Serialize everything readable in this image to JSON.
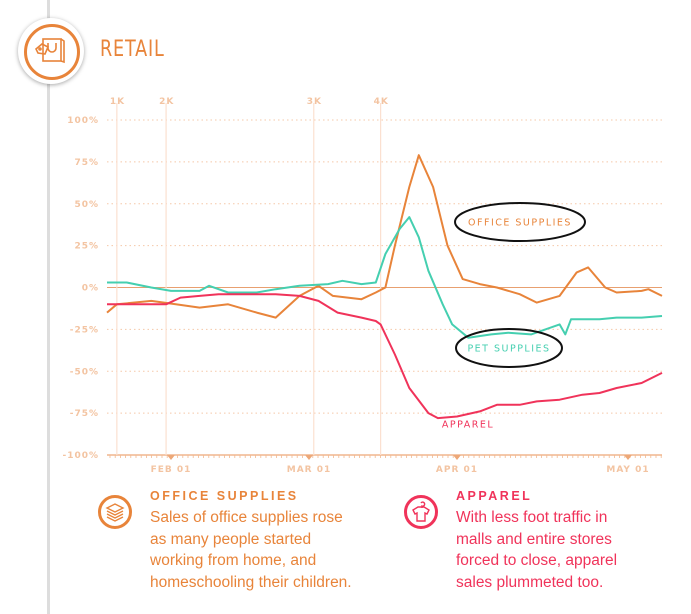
{
  "header": {
    "title": "RETAIL",
    "icon": "shopping-bag-icon"
  },
  "colors": {
    "office": "#e8843a",
    "pet": "#45cfb0",
    "apparel": "#f0335a",
    "grid": "#f5c8a8"
  },
  "chart_data": {
    "type": "line",
    "title": "",
    "xlabel": "",
    "ylabel": "",
    "ylim": [
      -100,
      100
    ],
    "xlim": [
      "01-19",
      "05-06"
    ],
    "grid": true,
    "yticks": [
      100,
      75,
      50,
      25,
      0,
      -25,
      -50,
      -75,
      -100
    ],
    "ytick_labels": [
      "100%",
      "75%",
      "50%",
      "25%",
      "0%",
      "-25%",
      "-50%",
      "-75%",
      "-100%"
    ],
    "xticks": [
      "02-01",
      "03-01",
      "04-01",
      "05-01"
    ],
    "xtick_labels": [
      "FEB 01",
      "MAR 01",
      "APR 01",
      "MAY 01"
    ],
    "markers": [
      {
        "label": "1K",
        "date": "01-21"
      },
      {
        "label": "2K",
        "date": "01-31"
      },
      {
        "label": "3K",
        "date": "03-02"
      },
      {
        "label": "4K",
        "date": "03-16"
      }
    ],
    "series": [
      {
        "name": "OFFICE SUPPLIES",
        "color": "#e8843a",
        "circled": true,
        "points": [
          [
            "01-19",
            -15
          ],
          [
            "01-21",
            -10
          ],
          [
            "01-28",
            -8
          ],
          [
            "02-02",
            -10
          ],
          [
            "02-07",
            -12
          ],
          [
            "02-13",
            -10
          ],
          [
            "02-19",
            -15
          ],
          [
            "02-23",
            -18
          ],
          [
            "02-28",
            -5
          ],
          [
            "03-03",
            1
          ],
          [
            "03-06",
            -5
          ],
          [
            "03-12",
            -7
          ],
          [
            "03-15",
            -3
          ],
          [
            "03-17",
            0
          ],
          [
            "03-19",
            25
          ],
          [
            "03-22",
            60
          ],
          [
            "03-24",
            79
          ],
          [
            "03-27",
            60
          ],
          [
            "03-30",
            25
          ],
          [
            "04-02",
            5
          ],
          [
            "04-05",
            2
          ],
          [
            "04-08",
            0
          ],
          [
            "04-12",
            -4
          ],
          [
            "04-15",
            -9
          ],
          [
            "04-19",
            -5
          ],
          [
            "04-22",
            9
          ],
          [
            "04-24",
            12
          ],
          [
            "04-27",
            0
          ],
          [
            "04-29",
            -3
          ],
          [
            "05-03",
            -2
          ],
          [
            "05-04",
            -1
          ],
          [
            "05-06",
            -5
          ]
        ]
      },
      {
        "name": "PET SUPPLIES",
        "color": "#45cfb0",
        "circled": true,
        "points": [
          [
            "01-19",
            3
          ],
          [
            "01-23",
            3
          ],
          [
            "01-28",
            0
          ],
          [
            "02-01",
            -2
          ],
          [
            "02-07",
            -2
          ],
          [
            "02-09",
            1
          ],
          [
            "02-13",
            -3
          ],
          [
            "02-19",
            -3
          ],
          [
            "02-23",
            -1
          ],
          [
            "02-28",
            1
          ],
          [
            "03-05",
            2
          ],
          [
            "03-08",
            4
          ],
          [
            "03-12",
            2
          ],
          [
            "03-15",
            3
          ],
          [
            "03-17",
            20
          ],
          [
            "03-20",
            35
          ],
          [
            "03-22",
            42
          ],
          [
            "03-24",
            30
          ],
          [
            "03-26",
            10
          ],
          [
            "03-29",
            -10
          ],
          [
            "03-31",
            -22
          ],
          [
            "04-03",
            -30
          ],
          [
            "04-07",
            -28
          ],
          [
            "04-10",
            -27
          ],
          [
            "04-14",
            -28
          ],
          [
            "04-19",
            -22
          ],
          [
            "04-20",
            -28
          ],
          [
            "04-21",
            -19
          ],
          [
            "04-26",
            -19
          ],
          [
            "04-29",
            -18
          ],
          [
            "05-03",
            -18
          ],
          [
            "05-06",
            -17
          ]
        ]
      },
      {
        "name": "APPAREL",
        "color": "#f0335a",
        "circled": false,
        "points": [
          [
            "01-19",
            -10
          ],
          [
            "01-25",
            -10
          ],
          [
            "01-31",
            -10
          ],
          [
            "02-03",
            -6
          ],
          [
            "02-07",
            -5
          ],
          [
            "02-11",
            -4
          ],
          [
            "02-15",
            -4
          ],
          [
            "02-19",
            -4
          ],
          [
            "02-23",
            -4
          ],
          [
            "02-28",
            -5
          ],
          [
            "03-03",
            -8
          ],
          [
            "03-07",
            -15
          ],
          [
            "03-12",
            -18
          ],
          [
            "03-15",
            -20
          ],
          [
            "03-16",
            -22
          ],
          [
            "03-19",
            -40
          ],
          [
            "03-22",
            -60
          ],
          [
            "03-26",
            -75
          ],
          [
            "03-28",
            -78
          ],
          [
            "04-01",
            -77
          ],
          [
            "04-05",
            -74
          ],
          [
            "04-08",
            -70
          ],
          [
            "04-12",
            -70
          ],
          [
            "04-15",
            -68
          ],
          [
            "04-19",
            -67
          ],
          [
            "04-23",
            -64
          ],
          [
            "04-26",
            -63
          ],
          [
            "04-29",
            -60
          ],
          [
            "05-03",
            -57
          ],
          [
            "05-06",
            -51
          ]
        ]
      }
    ]
  },
  "notes": [
    {
      "title": "OFFICE SUPPLIES",
      "icon": "stacked-paper-icon",
      "lines": [
        "Sales of office supplies rose",
        "as many people started",
        "working from home, and",
        "homeschooling their children."
      ]
    },
    {
      "title": "APPAREL",
      "icon": "shirt-on-hanger-icon",
      "lines": [
        "With less foot traffic in",
        "malls and entire stores",
        "forced to close, apparel",
        "sales plummeted too."
      ]
    }
  ]
}
